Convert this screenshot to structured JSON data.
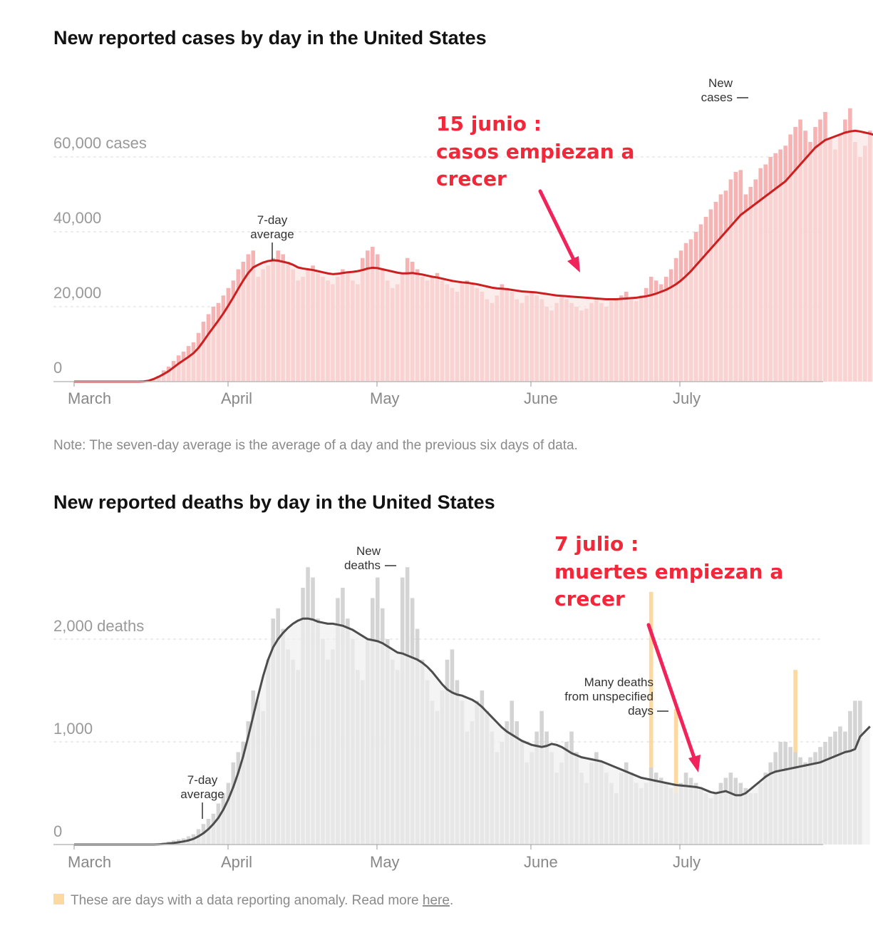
{
  "chart_data": [
    {
      "type": "bar",
      "title": "New reported cases by day in the United States",
      "xlabel": "",
      "ylabel": "",
      "ylim": [
        0,
        75000
      ],
      "yticks": [
        {
          "value": 0,
          "label": "0"
        },
        {
          "value": 20000,
          "label": "20,000"
        },
        {
          "value": 40000,
          "label": "40,000"
        },
        {
          "value": 60000,
          "label": "60,000 cases"
        }
      ],
      "month_ticks": [
        {
          "label": "March",
          "day": 0
        },
        {
          "label": "April",
          "day": 31
        },
        {
          "label": "May",
          "day": 61
        },
        {
          "label": "June",
          "day": 92
        },
        {
          "label": "July",
          "day": 122
        }
      ],
      "x_start": "2020-03-01",
      "x_end": "2020-07-27",
      "grid": true,
      "colors": {
        "bars": "#f6b3b3",
        "avg_fill": "#fbe3e3",
        "line": "#cc1f1f"
      },
      "series": [
        {
          "name": "New cases",
          "values": [
            0,
            0,
            0,
            0,
            0,
            0,
            0,
            0,
            0,
            0,
            0,
            0,
            0,
            0,
            0,
            100,
            500,
            1500,
            3000,
            4000,
            5500,
            7000,
            8000,
            9500,
            10500,
            13000,
            16000,
            18000,
            20000,
            21000,
            23000,
            25000,
            27000,
            30000,
            32000,
            34000,
            35000,
            28000,
            30000,
            31000,
            33000,
            35000,
            34000,
            32000,
            30000,
            27000,
            28000,
            30000,
            31000,
            29000,
            28000,
            27000,
            26000,
            28000,
            30000,
            29000,
            27000,
            26000,
            33000,
            35000,
            36000,
            34000,
            30000,
            27000,
            25000,
            26000,
            29000,
            33000,
            32000,
            30000,
            28000,
            27000,
            28000,
            29000,
            27000,
            26000,
            25000,
            24000,
            26000,
            27000,
            26000,
            25000,
            24000,
            22000,
            21000,
            23000,
            26000,
            25000,
            24000,
            22000,
            21000,
            23000,
            24000,
            23000,
            22000,
            20000,
            19000,
            21000,
            23000,
            22000,
            21000,
            20000,
            19000,
            19500,
            21000,
            22000,
            21000,
            20000,
            21500,
            22000,
            23000,
            24000,
            22000,
            21500,
            23000,
            25000,
            28000,
            27000,
            26000,
            28000,
            30000,
            33000,
            35000,
            37000,
            38000,
            40000,
            42000,
            44000,
            46000,
            48000,
            50000,
            51000,
            54000,
            56000,
            56500,
            50000,
            52000,
            54000,
            57000,
            58000,
            60000,
            61000,
            62000,
            63000,
            66000,
            68000,
            70000,
            67000,
            64000,
            68000,
            70000,
            72000,
            65000,
            62000,
            66000,
            70000,
            73000,
            64000,
            60000,
            63000,
            67000
          ]
        },
        {
          "name": "7-day average",
          "values": [
            0,
            0,
            0,
            0,
            0,
            0,
            0,
            0,
            0,
            0,
            0,
            0,
            0,
            0,
            50,
            250,
            700,
            1300,
            2000,
            2800,
            3800,
            4800,
            5700,
            6600,
            7600,
            9000,
            10800,
            12700,
            14500,
            16300,
            18200,
            20300,
            22500,
            24800,
            27000,
            29000,
            30500,
            31200,
            31800,
            32200,
            32400,
            32300,
            32000,
            31700,
            31200,
            30500,
            30200,
            30000,
            29800,
            29500,
            29200,
            28900,
            28700,
            28800,
            29000,
            29200,
            29300,
            29500,
            29800,
            30200,
            30400,
            30300,
            30000,
            29700,
            29400,
            29100,
            28900,
            28900,
            29000,
            28800,
            28600,
            28300,
            28000,
            27800,
            27500,
            27200,
            26900,
            26700,
            26500,
            26400,
            26200,
            26000,
            25700,
            25400,
            25100,
            24900,
            24800,
            24700,
            24500,
            24300,
            24100,
            24000,
            23900,
            23800,
            23600,
            23400,
            23200,
            23000,
            22900,
            22800,
            22700,
            22600,
            22500,
            22400,
            22300,
            22200,
            22100,
            22000,
            22000,
            22000,
            22100,
            22200,
            22300,
            22400,
            22600,
            22800,
            23100,
            23500,
            24000,
            24500,
            25200,
            26000,
            27000,
            28200,
            29500,
            31000,
            32500,
            34000,
            35500,
            37000,
            38500,
            40000,
            41500,
            43000,
            44500,
            45500,
            46500,
            47500,
            48500,
            49500,
            50500,
            51500,
            52500,
            53500,
            55000,
            56500,
            58000,
            59500,
            61000,
            62500,
            63500,
            64500,
            65000,
            65500,
            66000,
            66500,
            66800,
            67000,
            66800,
            66500,
            66200,
            65800,
            65500
          ]
        }
      ],
      "annotations": [
        {
          "lines": [
            "7-day",
            "average"
          ]
        },
        {
          "lines": [
            "New",
            "cases"
          ]
        }
      ]
    },
    {
      "type": "bar",
      "title": "New reported deaths by day in the United States",
      "xlabel": "",
      "ylabel": "",
      "ylim": [
        0,
        2900
      ],
      "yticks": [
        {
          "value": 0,
          "label": "0"
        },
        {
          "value": 1000,
          "label": "1,000"
        },
        {
          "value": 2000,
          "label": "2,000 deaths"
        }
      ],
      "month_ticks": [
        {
          "label": "March",
          "day": 0
        },
        {
          "label": "April",
          "day": 31
        },
        {
          "label": "May",
          "day": 61
        },
        {
          "label": "June",
          "day": 92
        },
        {
          "label": "July",
          "day": 122
        }
      ],
      "x_start": "2020-03-01",
      "x_end": "2020-07-27",
      "grid": true,
      "colors": {
        "bars": "#d4d4d4",
        "avg_fill": "#efefef",
        "line": "#4d4d4d",
        "anomaly": "#fcd9a0"
      },
      "anomaly_days": [
        "2020-06-25",
        "2020-06-30",
        "2020-07-24"
      ],
      "series": [
        {
          "name": "New deaths",
          "values": [
            0,
            0,
            0,
            0,
            0,
            0,
            0,
            0,
            0,
            0,
            0,
            0,
            0,
            0,
            0,
            0,
            0,
            10,
            20,
            30,
            40,
            50,
            60,
            80,
            100,
            150,
            200,
            250,
            300,
            400,
            500,
            600,
            800,
            900,
            1000,
            1200,
            1500,
            1400,
            1300,
            1800,
            2200,
            2300,
            2100,
            1900,
            1800,
            1700,
            2500,
            2700,
            2600,
            2200,
            2000,
            1800,
            1900,
            2400,
            2500,
            2200,
            2000,
            1700,
            1600,
            2000,
            2400,
            2600,
            2300,
            2000,
            1800,
            1700,
            2600,
            2700,
            2400,
            2100,
            1800,
            1600,
            1400,
            1300,
            1500,
            1800,
            1900,
            1600,
            1400,
            1100,
            1200,
            1400,
            1500,
            1300,
            1100,
            900,
            1000,
            1200,
            1400,
            1200,
            1000,
            800,
            900,
            1100,
            1300,
            1100,
            900,
            700,
            800,
            1000,
            1100,
            900,
            700,
            600,
            800,
            900,
            800,
            700,
            600,
            500,
            700,
            800,
            700,
            600,
            550,
            600,
            750,
            700,
            650,
            600,
            550,
            500,
            600,
            700,
            650,
            600,
            550,
            500,
            450,
            500,
            600,
            650,
            700,
            650,
            600,
            550,
            500,
            500,
            600,
            700,
            800,
            900,
            1000,
            1000,
            950,
            900,
            850,
            800,
            850,
            900,
            950,
            1000,
            1050,
            1100,
            1150,
            1100,
            1300,
            1400,
            1400
          ]
        },
        {
          "name": "7-day average",
          "values": [
            0,
            0,
            0,
            0,
            0,
            0,
            0,
            0,
            0,
            0,
            0,
            0,
            0,
            0,
            0,
            0,
            0,
            2,
            5,
            10,
            15,
            22,
            30,
            40,
            55,
            80,
            110,
            150,
            200,
            260,
            340,
            440,
            560,
            700,
            860,
            1050,
            1250,
            1450,
            1640,
            1800,
            1920,
            2000,
            2060,
            2110,
            2150,
            2180,
            2200,
            2200,
            2190,
            2170,
            2160,
            2150,
            2150,
            2140,
            2130,
            2110,
            2090,
            2060,
            2030,
            2000,
            1990,
            1980,
            1960,
            1930,
            1900,
            1870,
            1860,
            1840,
            1820,
            1800,
            1770,
            1730,
            1680,
            1620,
            1560,
            1510,
            1480,
            1460,
            1450,
            1430,
            1410,
            1380,
            1340,
            1290,
            1240,
            1190,
            1140,
            1100,
            1070,
            1040,
            1010,
            990,
            970,
            960,
            950,
            960,
            980,
            970,
            950,
            920,
            890,
            870,
            850,
            840,
            830,
            820,
            810,
            790,
            770,
            750,
            730,
            710,
            690,
            670,
            650,
            640,
            630,
            620,
            610,
            600,
            590,
            580,
            575,
            570,
            565,
            560,
            550,
            530,
            510,
            500,
            510,
            520,
            500,
            480,
            480,
            500,
            540,
            580,
            620,
            660,
            690,
            710,
            720,
            730,
            740,
            750,
            760,
            770,
            780,
            790,
            800,
            820,
            840,
            860,
            880,
            900,
            910,
            930,
            1050,
            1100,
            1150
          ]
        }
      ],
      "annotations": [
        {
          "lines": [
            "7-day",
            "average"
          ]
        },
        {
          "lines": [
            "New",
            "deaths"
          ]
        },
        {
          "lines": [
            "Many deaths",
            "from unspecified",
            "days"
          ]
        }
      ]
    }
  ],
  "notes": {
    "cases_note": "Note: The seven-day average is the average of a day and the previous six days of data.",
    "anomaly_note": "These are days with a data reporting anomaly. Read more ",
    "anomaly_link": "here",
    "anomaly_end": "."
  },
  "overlay_annotations": [
    {
      "lines": [
        "15 junio :",
        "casos empiezan a",
        "crecer"
      ],
      "color": "#f2273a"
    },
    {
      "lines": [
        "7 julio :",
        "muertes empiezan a",
        "crecer"
      ],
      "color": "#f2273a"
    }
  ]
}
